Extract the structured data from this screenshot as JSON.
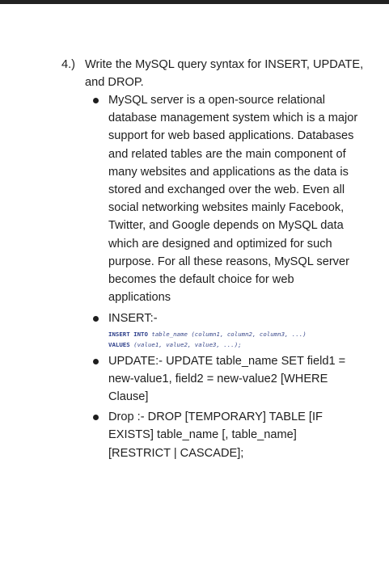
{
  "question": {
    "number": "4.)",
    "text": "Write the MySQL query syntax for INSERT, UPDATE, and DROP."
  },
  "answers": {
    "intro": "MySQL server is a open-source relational database management system which is a major support for web based applications. Databases and related tables are the main component of many websites and applications as the data is stored and exchanged over the web. Even all social networking websites mainly Facebook, Twitter, and Google depends on MySQL data which are designed and optimized for such purpose. For all these reasons, MySQL server becomes the default choice for web applications",
    "insert_label": "INSERT:-",
    "insert_code": {
      "kw1": "INSERT INTO",
      "line1": " table_name (column1, column2, column3, ...)",
      "kw2": "VALUES",
      "line2": " (value1, value2, value3, ...);"
    },
    "update": "UPDATE:- UPDATE table_name SET field1 = new-value1, field2 = new-value2 [WHERE Clause]",
    "drop": "Drop :- DROP [TEMPORARY] TABLE [IF EXISTS] table_name [, table_name] [RESTRICT | CASCADE];"
  },
  "colors": {
    "text": "#1e1e1e",
    "code": "#3b4a8c",
    "top_bar": "#222222"
  }
}
